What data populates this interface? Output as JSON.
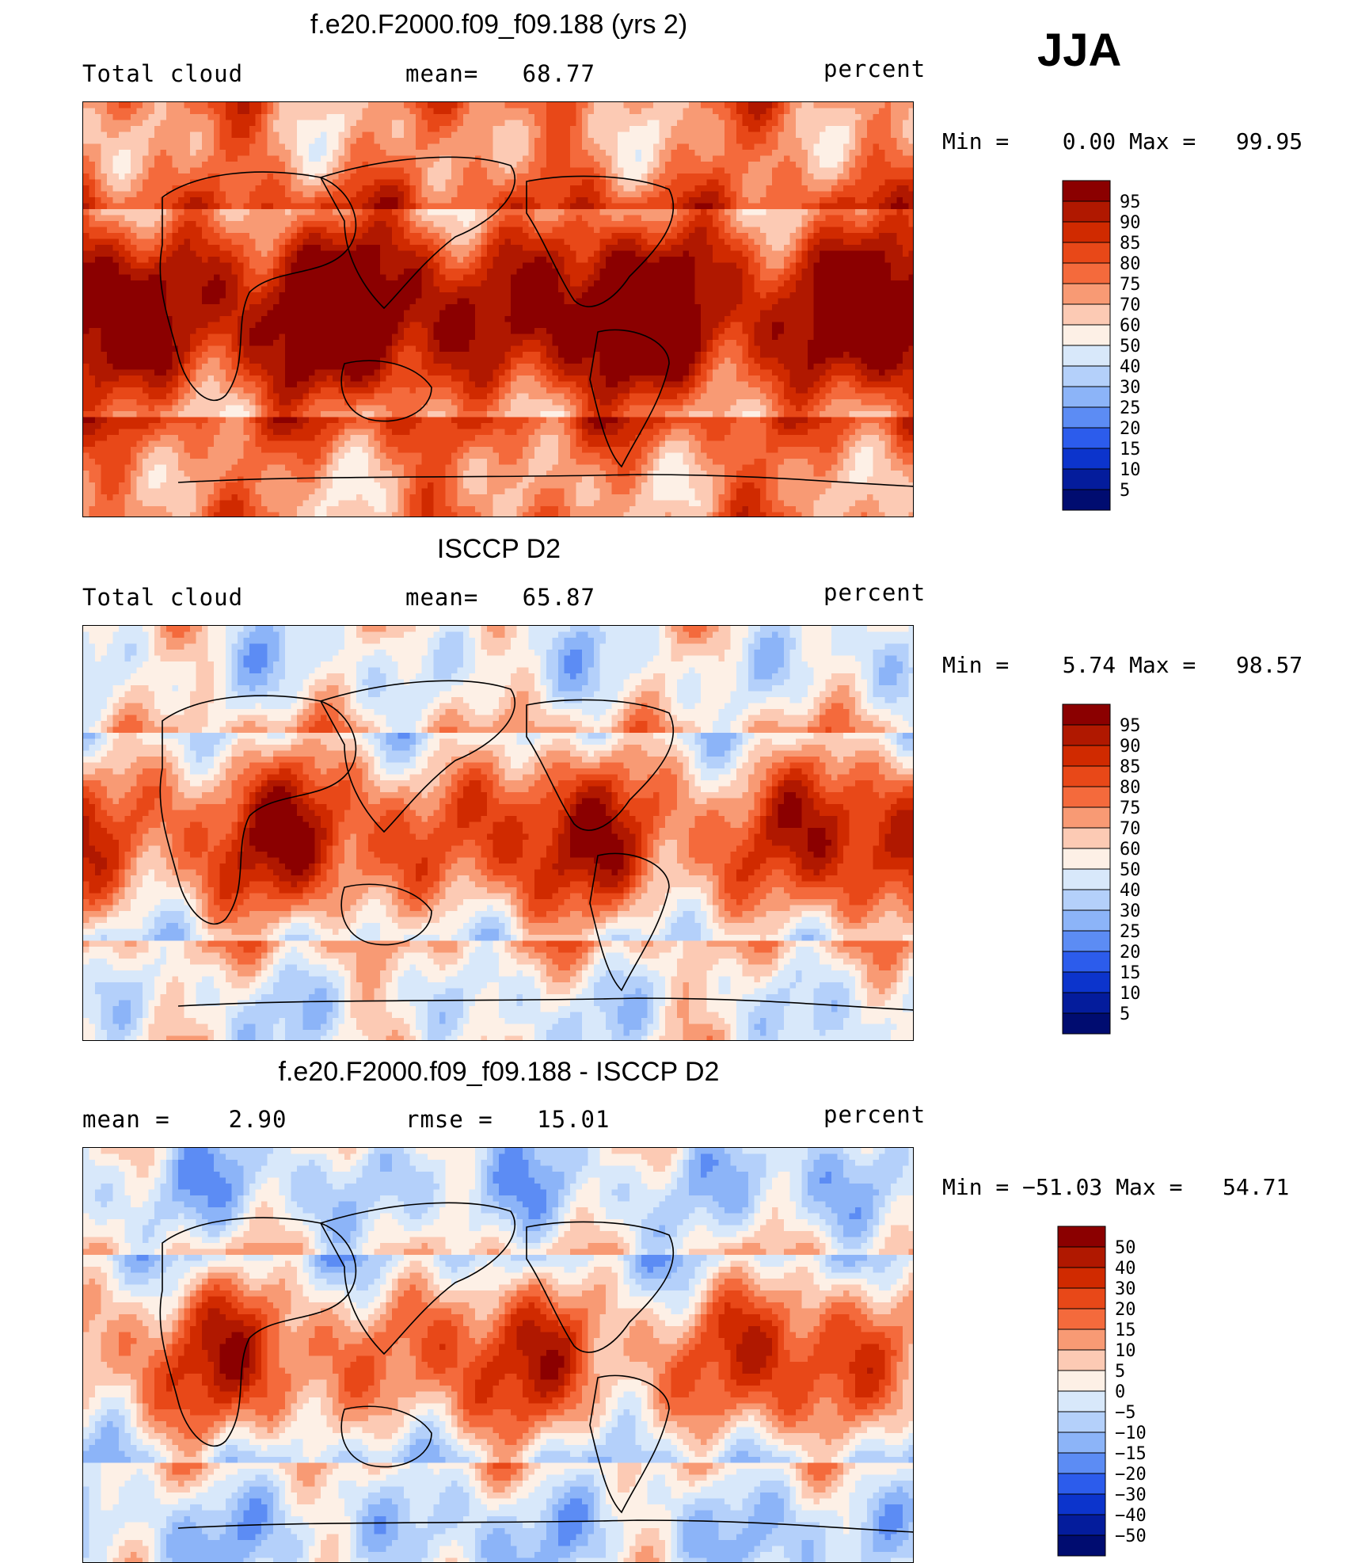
{
  "season": "JJA",
  "panels": [
    {
      "id": "model",
      "title": "f.e20.F2000.f09_f09.188 (yrs 2)",
      "left_label": "Total cloud",
      "center_label": "mean=   68.77",
      "units": "percent",
      "minmax": "Min =    0.00 Max =   99.95",
      "colorbar": {
        "levels": [
          "95",
          "90",
          "85",
          "80",
          "75",
          "70",
          "60",
          "50",
          "40",
          "30",
          "25",
          "20",
          "15",
          "10",
          "5"
        ],
        "colors": [
          "#8b0000",
          "#b01800",
          "#d02a00",
          "#e84818",
          "#f46a3c",
          "#f89a74",
          "#fccab4",
          "#fdf0e6",
          "#d8e8fa",
          "#b4d0fa",
          "#8cb4f8",
          "#5c8cf4",
          "#2c5cec",
          "#0c34cc",
          "#041c9c",
          "#000c70"
        ]
      },
      "map_bias": 0.8
    },
    {
      "id": "obs",
      "title": "ISCCP D2",
      "left_label": "Total cloud",
      "center_label": "mean=   65.87",
      "units": "percent",
      "minmax": "Min =    5.74 Max =   98.57",
      "colorbar": {
        "levels": [
          "95",
          "90",
          "85",
          "80",
          "75",
          "70",
          "60",
          "50",
          "40",
          "30",
          "25",
          "20",
          "15",
          "10",
          "5"
        ],
        "colors": [
          "#8b0000",
          "#b01800",
          "#d02a00",
          "#e84818",
          "#f46a3c",
          "#f89a74",
          "#fccab4",
          "#fdf0e6",
          "#d8e8fa",
          "#b4d0fa",
          "#8cb4f8",
          "#5c8cf4",
          "#2c5cec",
          "#0c34cc",
          "#041c9c",
          "#000c70"
        ]
      },
      "map_bias": 0.2
    },
    {
      "id": "diff",
      "title": "f.e20.F2000.f09_f09.188 - ISCCP D2",
      "left_label": "mean =    2.90",
      "center_label": "rmse =   15.01",
      "units": "percent",
      "minmax": "Min = −51.03 Max =   54.71",
      "colorbar": {
        "levels": [
          "50",
          "40",
          "30",
          "20",
          "15",
          "10",
          "5",
          "0",
          "−5",
          "−10",
          "−15",
          "−20",
          "−30",
          "−40",
          "−50"
        ],
        "colors": [
          "#8b0000",
          "#b01800",
          "#d02a00",
          "#e84818",
          "#f46a3c",
          "#f89a74",
          "#fccab4",
          "#fdf0e6",
          "#d8e8fa",
          "#b4d0fa",
          "#8cb4f8",
          "#5c8cf4",
          "#2c5cec",
          "#0c34cc",
          "#041c9c",
          "#000c70"
        ]
      },
      "map_bias": 0.0
    }
  ]
}
